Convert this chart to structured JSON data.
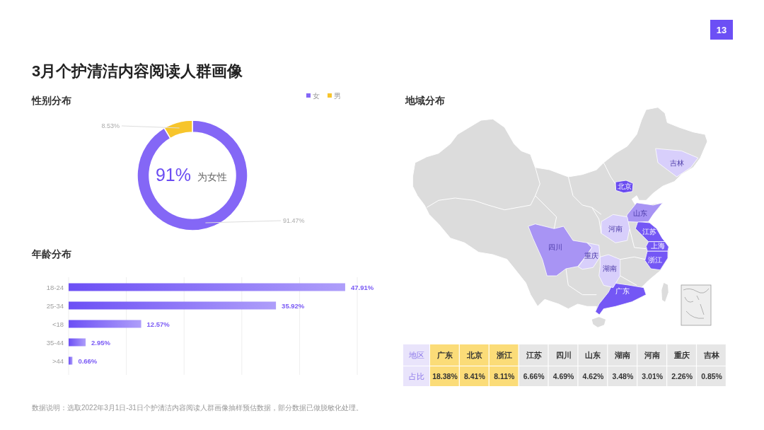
{
  "chart_data": [
    {
      "type": "donut",
      "title": "3月个护清洁内容阅读人群画像",
      "subtitle": "性别分布",
      "categories": [
        "女",
        "男"
      ],
      "values": [
        91.47,
        8.53
      ],
      "colors": [
        "#8467f6",
        "#f7c52c"
      ],
      "value_labels": [
        "91.47%",
        "8.53%"
      ],
      "legend": "top right",
      "annotations": [
        "91%",
        "为女性",
        "13"
      ]
    },
    {
      "type": "bar",
      "title": "年龄分布",
      "orientation": "horizontal",
      "categories": [
        "18-24",
        "25-34",
        "<18",
        "35-44",
        ">44"
      ],
      "values": [
        47.91,
        35.92,
        12.57,
        2.95,
        0.66
      ],
      "color": "#6c4ff5",
      "value_labels": [
        "47.91%",
        "35.92%",
        "12.57%",
        "2.95%",
        "0.66%"
      ],
      "xlim": [
        0,
        50
      ],
      "xticks": [
        {
          "value": 0,
          "label": null
        },
        {
          "value": 10,
          "label": null
        },
        {
          "value": 20,
          "label": null
        },
        {
          "value": 30,
          "label": null
        },
        {
          "value": 40,
          "label": null
        },
        {
          "value": 50,
          "label": null
        }
      ],
      "grid": "x",
      "tick_labels": "y",
      "annotations": [
        "数据说明：选取2022年3月1日-31日个护清洁内容阅读人群画像抽样预估数据，部分数据已做脱敏化处理。"
      ]
    },
    {
      "type": "other",
      "title": "地域分布",
      "categories": [
        "广东",
        "北京",
        "浙江",
        "江苏",
        "四川",
        "山东",
        "湖南",
        "河南",
        "重庆",
        "吉林",
        "上海"
      ],
      "colors": [
        "#7457f5",
        "#6a4cf0",
        "#7457f5",
        "#7457f5",
        "#a894f4",
        "#a894f4",
        "#d8cffb",
        "#d8cffb",
        "#d8cffb",
        "#d8cffb",
        "#7457f5"
      ]
    },
    {
      "type": "other",
      "xlabel": "地区",
      "ylabel": "占比",
      "categories": [
        "广东",
        "北京",
        "浙江",
        "江苏",
        "四川",
        "山东",
        "湖南",
        "河南",
        "重庆",
        "吉林"
      ],
      "values": [
        18.38,
        8.41,
        8.11,
        6.66,
        4.69,
        4.62,
        3.48,
        3.01,
        2.26,
        0.85
      ],
      "colors": [
        "#fbdc78",
        "#fbdc78",
        "#fbdc78",
        "#e6e6e6",
        "#e6e6e6",
        "#e6e6e6",
        "#e6e6e6",
        "#e6e6e6",
        "#e6e6e6",
        "#e6e6e6"
      ],
      "value_labels": [
        "18.38%",
        "8.41%",
        "8.11%",
        "6.66%",
        "4.69%",
        "4.62%",
        "3.48%",
        "3.01%",
        "2.26%",
        "0.85%"
      ]
    }
  ]
}
